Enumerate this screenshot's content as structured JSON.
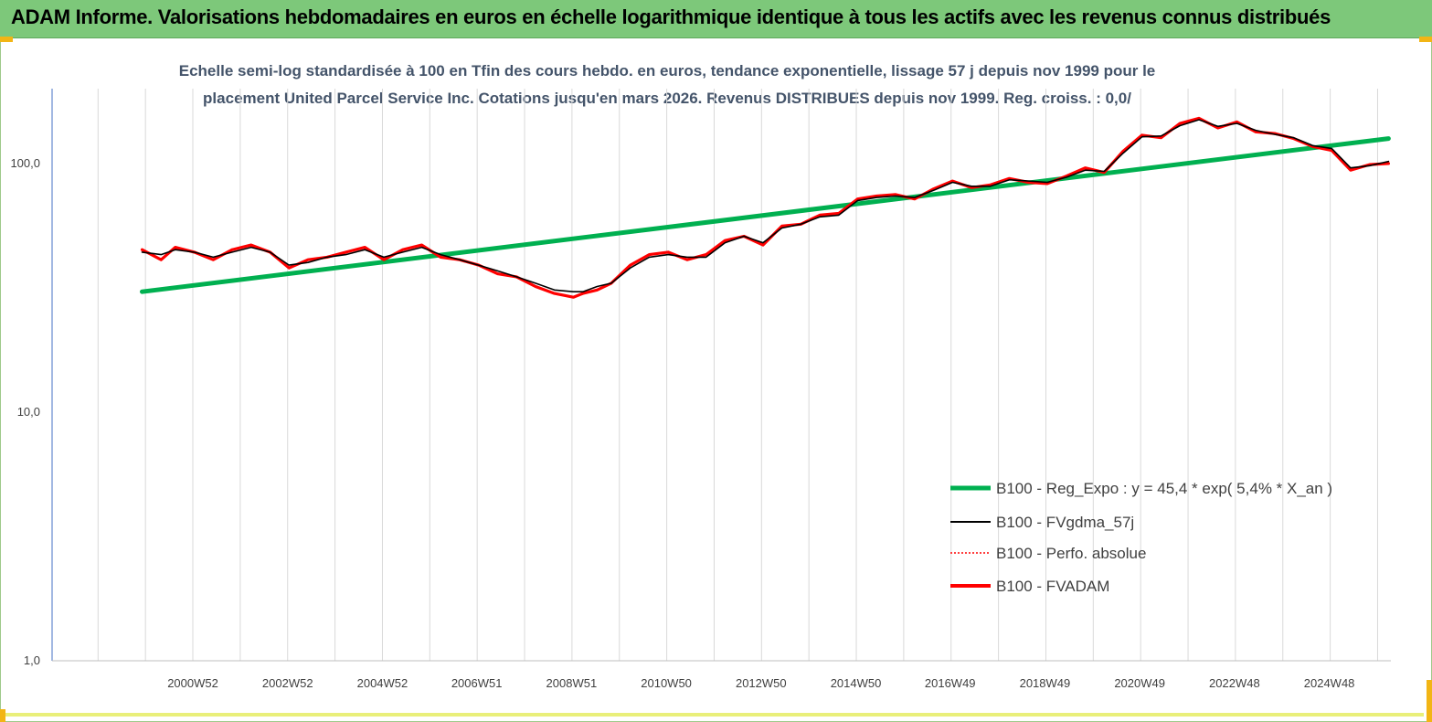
{
  "header": {
    "title": "ADAM Informe. Valorisations hebdomadaires en euros en échelle logarithmique identique à tous les actifs avec les revenus connus distribués"
  },
  "chart_data": {
    "type": "line",
    "title_line1": "Echelle semi-log standardisée à 100 en Tfin des cours hebdo. en euros, tendance exponentielle, lissage 57 j depuis nov 1999 pour le",
    "title_line2": "placement United Parcel Service Inc. Cotations jusqu'en mars 2026. Revenus DISTRIBUES depuis nov 1999. Reg. croiss. : 0,0/",
    "y_scale": "log",
    "ylim": [
      1,
      200
    ],
    "y_ticks": [
      1,
      10,
      100
    ],
    "y_tick_labels": [
      "1,0",
      "10,0",
      "100,0"
    ],
    "xlim": [
      1998.0,
      2026.25
    ],
    "x_ticks": [
      2000.97,
      2002.97,
      2004.97,
      2006.96,
      2008.96,
      2010.96,
      2012.96,
      2014.96,
      2016.95,
      2018.95,
      2020.95,
      2022.95,
      2024.95
    ],
    "x_tick_labels": [
      "2000W52",
      "2002W52",
      "2004W52",
      "2006W51",
      "2008W51",
      "2010W50",
      "2012W50",
      "2014W50",
      "2016W49",
      "2018W49",
      "2020W49",
      "2022W48",
      "2024W48"
    ],
    "grid": "vertical",
    "legend_position": "bottom-right",
    "series": [
      {
        "name": "B100 - Reg_Expo : y = 45,4 *  exp( 5,4% *  X_an )",
        "color": "#00b050",
        "x": [
          1999.9,
          2026.2
        ],
        "y": [
          30.5,
          126
        ]
      },
      {
        "name": "B100 - FVgdma_57j",
        "color": "#000000",
        "x": [
          1999.9,
          2000.3,
          2000.6,
          2001.0,
          2001.4,
          2001.8,
          2002.2,
          2002.6,
          2003.0,
          2003.4,
          2003.8,
          2004.2,
          2004.6,
          2005.0,
          2005.4,
          2005.8,
          2006.2,
          2006.6,
          2007.0,
          2007.4,
          2007.8,
          2008.2,
          2008.6,
          2009.0,
          2009.2,
          2009.5,
          2009.8,
          2010.2,
          2010.6,
          2011.0,
          2011.4,
          2011.8,
          2012.2,
          2012.6,
          2013.0,
          2013.4,
          2013.8,
          2014.2,
          2014.6,
          2015.0,
          2015.4,
          2015.8,
          2016.2,
          2016.6,
          2017.0,
          2017.4,
          2017.8,
          2018.2,
          2018.6,
          2019.0,
          2019.4,
          2019.8,
          2020.2,
          2020.6,
          2021.0,
          2021.4,
          2021.8,
          2022.2,
          2022.6,
          2023.0,
          2023.4,
          2023.8,
          2024.2,
          2024.6,
          2025.0,
          2025.4,
          2025.8,
          2026.2
        ],
        "y": [
          44,
          43,
          45,
          44,
          42,
          44,
          46,
          44,
          39,
          40,
          42,
          43,
          45,
          42,
          44,
          46,
          43,
          41,
          39,
          37,
          35,
          33,
          31,
          30.5,
          30.5,
          32,
          33,
          38,
          42,
          43,
          42,
          42,
          48,
          51,
          48,
          55,
          57,
          61,
          62,
          71,
          73,
          74,
          73,
          78,
          84,
          81,
          81,
          86,
          85,
          84,
          88,
          94,
          93,
          110,
          128,
          129,
          142,
          150,
          141,
          145,
          136,
          131,
          127,
          118,
          115,
          96,
          98,
          102
        ]
      },
      {
        "name": "B100 - Perfo. absolue",
        "color": "#ff0000",
        "x": [
          1999.9,
          2000.3,
          2000.6,
          2001.0,
          2001.4,
          2001.8,
          2002.2,
          2002.6,
          2003.0,
          2003.4,
          2003.8,
          2004.2,
          2004.6,
          2005.0,
          2005.4,
          2005.8,
          2006.2,
          2006.6,
          2007.0,
          2007.4,
          2007.8,
          2008.2,
          2008.6,
          2009.0,
          2009.2,
          2009.5,
          2009.8,
          2010.2,
          2010.6,
          2011.0,
          2011.4,
          2011.8,
          2012.2,
          2012.6,
          2013.0,
          2013.4,
          2013.8,
          2014.2,
          2014.6,
          2015.0,
          2015.4,
          2015.8,
          2016.2,
          2016.6,
          2017.0,
          2017.4,
          2017.8,
          2018.2,
          2018.6,
          2019.0,
          2019.4,
          2019.8,
          2020.2,
          2020.6,
          2021.0,
          2021.4,
          2021.8,
          2022.2,
          2022.6,
          2023.0,
          2023.4,
          2023.8,
          2024.2,
          2024.6,
          2025.0,
          2025.4,
          2025.8,
          2026.2
        ],
        "y": [
          45,
          41,
          46,
          44,
          41,
          45,
          47,
          44,
          38,
          41,
          42,
          44,
          46,
          41,
          45,
          47,
          42,
          41,
          39,
          36,
          35,
          32,
          30,
          29,
          30,
          31,
          33,
          39,
          43,
          44,
          41,
          43,
          49,
          51,
          47,
          56,
          57,
          62,
          63,
          72,
          74,
          75,
          72,
          79,
          85,
          80,
          82,
          87,
          84,
          83,
          89,
          96,
          92,
          112,
          130,
          127,
          145,
          152,
          139,
          147,
          134,
          132,
          126,
          117,
          113,
          94,
          99,
          100
        ]
      },
      {
        "name": "B100 - FVADAM",
        "color": "#ff0000",
        "x": [
          1999.9,
          2000.3,
          2000.6,
          2001.0,
          2001.4,
          2001.8,
          2002.2,
          2002.6,
          2003.0,
          2003.4,
          2003.8,
          2004.2,
          2004.6,
          2005.0,
          2005.4,
          2005.8,
          2006.2,
          2006.6,
          2007.0,
          2007.4,
          2007.8,
          2008.2,
          2008.6,
          2009.0,
          2009.2,
          2009.5,
          2009.8,
          2010.2,
          2010.6,
          2011.0,
          2011.4,
          2011.8,
          2012.2,
          2012.6,
          2013.0,
          2013.4,
          2013.8,
          2014.2,
          2014.6,
          2015.0,
          2015.4,
          2015.8,
          2016.2,
          2016.6,
          2017.0,
          2017.4,
          2017.8,
          2018.2,
          2018.6,
          2019.0,
          2019.4,
          2019.8,
          2020.2,
          2020.6,
          2021.0,
          2021.4,
          2021.8,
          2022.2,
          2022.6,
          2023.0,
          2023.4,
          2023.8,
          2024.2,
          2024.6,
          2025.0,
          2025.4,
          2025.8,
          2026.2
        ],
        "y": [
          45,
          41,
          46,
          44,
          41,
          45,
          47,
          44,
          38,
          41,
          42,
          44,
          46,
          41,
          45,
          47,
          42,
          41,
          39,
          36,
          35,
          32,
          30,
          29,
          30,
          31,
          33,
          39,
          43,
          44,
          41,
          43,
          49,
          51,
          47,
          56,
          57,
          62,
          63,
          72,
          74,
          75,
          72,
          79,
          85,
          80,
          82,
          87,
          84,
          83,
          89,
          96,
          92,
          112,
          130,
          127,
          145,
          152,
          139,
          147,
          134,
          132,
          126,
          117,
          113,
          94,
          99,
          100
        ]
      }
    ]
  }
}
